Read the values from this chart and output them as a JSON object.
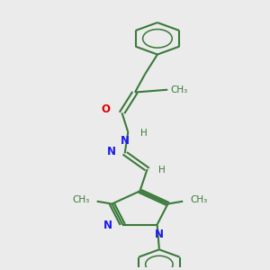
{
  "bg_color": "#ebebeb",
  "bond_color": "#3a7a3a",
  "bond_width": 1.5,
  "N_color": "#1a1aee",
  "O_color": "#dd0000",
  "font_size": 8.5,
  "small_font_size": 7.5,
  "fig_width": 3.0,
  "fig_height": 3.0,
  "xlim": [
    2.5,
    9.0
  ],
  "ylim": [
    0.2,
    10.5
  ]
}
